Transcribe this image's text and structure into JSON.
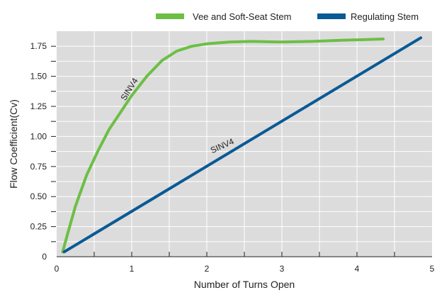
{
  "chart_data": {
    "type": "line",
    "title": "",
    "xlabel": "Number of Turns Open",
    "ylabel": "Flow Coefficient(Cv)",
    "xlim": [
      0,
      5
    ],
    "ylim": [
      0,
      1.875
    ],
    "x_ticks": [
      "0",
      "1",
      "2",
      "3",
      "4",
      "5"
    ],
    "y_ticks": [
      "0",
      "0.25",
      "0.50",
      "0.75",
      "1.00",
      "1.25",
      "1.50",
      "1.75"
    ],
    "grid": true,
    "legend_position": "top-right",
    "series": [
      {
        "name": "Vee and Soft-Seat Stem",
        "color": "#6cbf45",
        "points": [
          [
            0.08,
            0.04
          ],
          [
            0.15,
            0.2
          ],
          [
            0.25,
            0.42
          ],
          [
            0.4,
            0.68
          ],
          [
            0.55,
            0.88
          ],
          [
            0.7,
            1.06
          ],
          [
            0.85,
            1.2
          ],
          [
            1.0,
            1.34
          ],
          [
            1.2,
            1.5
          ],
          [
            1.4,
            1.63
          ],
          [
            1.6,
            1.71
          ],
          [
            1.8,
            1.75
          ],
          [
            2.0,
            1.77
          ],
          [
            2.3,
            1.785
          ],
          [
            2.6,
            1.79
          ],
          [
            3.0,
            1.785
          ],
          [
            3.4,
            1.79
          ],
          [
            3.8,
            1.8
          ],
          [
            4.1,
            1.805
          ],
          [
            4.35,
            1.81
          ]
        ]
      },
      {
        "name": "Regulating Stem",
        "color": "#0a5a94",
        "points": [
          [
            0.1,
            0.04
          ],
          [
            4.85,
            1.82
          ]
        ]
      }
    ],
    "annotations": [
      {
        "text": "SINV4",
        "x": 1.0,
        "y": 1.38,
        "angle": -58
      },
      {
        "text": "SINV4",
        "x": 2.22,
        "y": 0.9,
        "angle": -24
      }
    ]
  }
}
